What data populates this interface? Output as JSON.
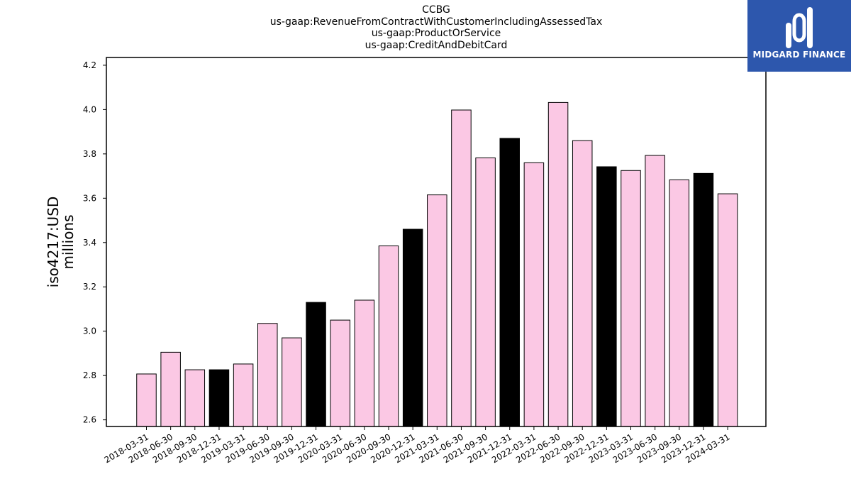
{
  "chart_data": {
    "type": "bar",
    "title_lines": [
      "CCBG",
      "us-gaap:RevenueFromContractWithCustomerIncludingAssessedTax",
      "us-gaap:ProductOrService",
      "us-gaap:CreditAndDebitCard"
    ],
    "ylabel_lines": [
      "iso4217:USD",
      "millions"
    ],
    "xlabel": "",
    "categories": [
      "2018-03-31",
      "2018-06-30",
      "2018-09-30",
      "2018-12-31",
      "2019-03-31",
      "2019-06-30",
      "2019-09-30",
      "2019-12-31",
      "2020-03-31",
      "2020-06-30",
      "2020-09-30",
      "2020-12-31",
      "2021-03-31",
      "2021-06-30",
      "2021-09-30",
      "2021-12-31",
      "2022-03-31",
      "2022-06-30",
      "2022-09-30",
      "2022-12-31",
      "2023-03-31",
      "2023-06-30",
      "2023-09-30",
      "2023-12-31",
      "2024-03-31"
    ],
    "values": [
      2.807,
      2.905,
      2.826,
      2.826,
      2.852,
      3.035,
      2.97,
      3.13,
      3.05,
      3.14,
      3.385,
      3.46,
      3.615,
      3.998,
      3.782,
      3.87,
      3.76,
      4.032,
      3.86,
      3.742,
      3.725,
      3.793,
      3.683,
      3.712,
      3.62
    ],
    "highlight_indices": [
      3,
      7,
      11,
      15,
      19,
      23
    ],
    "ylim": [
      2.57,
      4.235
    ],
    "yticks": [
      2.6,
      2.8,
      3.0,
      3.2,
      3.4,
      3.6,
      3.8,
      4.0,
      4.2
    ],
    "colors": {
      "bar": "#fbc8e4",
      "highlight": "#000000",
      "edge": "#000000"
    },
    "grid": false,
    "legend": "none"
  },
  "logo": {
    "text": "MIDGARD FINANCE",
    "color": "#2d57ad"
  }
}
